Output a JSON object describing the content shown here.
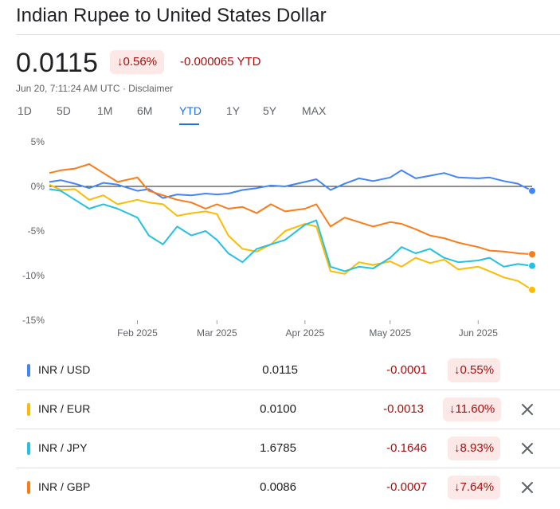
{
  "header": {
    "title": "Indian Rupee to United States Dollar",
    "price": "0.0115",
    "pct_change": "↓0.56%",
    "ytd_change": "-0.000065 YTD",
    "timestamp": "Jun 20, 7:11:24 AM UTC · Disclaimer"
  },
  "tabs": [
    "1D",
    "5D",
    "1M",
    "6M",
    "YTD",
    "1Y",
    "5Y",
    "MAX"
  ],
  "active_tab": "YTD",
  "colors": {
    "usd": "#4285f4",
    "eur": "#fbbc04",
    "jpy": "#24c1e0",
    "gbp": "#fa7b17",
    "negative": "#a50e0e",
    "negative_bg": "#fce8e6",
    "accent": "#1a73e8"
  },
  "chart_data": {
    "type": "line",
    "y_unit": "%",
    "ylim": [
      -15,
      5
    ],
    "yticks": [
      "5%",
      "0%",
      "-5%",
      "-10%",
      "-15%"
    ],
    "xticks": [
      "Feb 2025",
      "Mar 2025",
      "Apr 2025",
      "May 2025",
      "Jun 2025"
    ],
    "xlim": [
      "2025-01-01",
      "2025-06-20"
    ],
    "baseline": 0,
    "series": [
      {
        "name": "INR / USD",
        "color": "#4285f4",
        "x": [
          "2025-01-01",
          "2025-01-05",
          "2025-01-10",
          "2025-01-15",
          "2025-01-20",
          "2025-01-25",
          "2025-02-01",
          "2025-02-05",
          "2025-02-10",
          "2025-02-15",
          "2025-02-20",
          "2025-02-25",
          "2025-03-01",
          "2025-03-05",
          "2025-03-10",
          "2025-03-15",
          "2025-03-20",
          "2025-03-25",
          "2025-04-01",
          "2025-04-05",
          "2025-04-10",
          "2025-04-15",
          "2025-04-20",
          "2025-04-25",
          "2025-05-01",
          "2025-05-05",
          "2025-05-10",
          "2025-05-15",
          "2025-05-20",
          "2025-05-25",
          "2025-06-01",
          "2025-06-05",
          "2025-06-10",
          "2025-06-15",
          "2025-06-20"
        ],
        "y": [
          0.5,
          0.7,
          0.3,
          -0.2,
          0.4,
          0.2,
          -0.5,
          -0.3,
          -1.3,
          -0.9,
          -1.0,
          -0.8,
          -0.9,
          -0.8,
          -0.4,
          -0.2,
          0.1,
          0.0,
          0.5,
          0.8,
          -0.4,
          0.3,
          0.9,
          0.6,
          1.0,
          1.8,
          0.9,
          1.2,
          1.5,
          1.0,
          0.9,
          1.0,
          0.6,
          0.3,
          -0.5
        ]
      },
      {
        "name": "INR / EUR",
        "color": "#fbbc04",
        "x": [
          "2025-01-01",
          "2025-01-05",
          "2025-01-10",
          "2025-01-15",
          "2025-01-20",
          "2025-01-25",
          "2025-02-01",
          "2025-02-05",
          "2025-02-10",
          "2025-02-15",
          "2025-02-20",
          "2025-02-25",
          "2025-03-01",
          "2025-03-05",
          "2025-03-10",
          "2025-03-15",
          "2025-03-20",
          "2025-03-25",
          "2025-04-01",
          "2025-04-05",
          "2025-04-10",
          "2025-04-15",
          "2025-04-20",
          "2025-04-25",
          "2025-05-01",
          "2025-05-05",
          "2025-05-10",
          "2025-05-15",
          "2025-05-20",
          "2025-05-25",
          "2025-06-01",
          "2025-06-05",
          "2025-06-10",
          "2025-06-15",
          "2025-06-20"
        ],
        "y": [
          0.2,
          -0.4,
          -0.3,
          -1.5,
          -1.0,
          -2.0,
          -1.5,
          -1.8,
          -2.0,
          -3.3,
          -3.0,
          -2.8,
          -3.1,
          -5.5,
          -7.0,
          -7.3,
          -6.5,
          -5.0,
          -4.2,
          -4.5,
          -9.5,
          -9.8,
          -8.5,
          -8.8,
          -8.4,
          -9.0,
          -8.0,
          -8.6,
          -8.2,
          -9.3,
          -9.0,
          -9.5,
          -10.2,
          -10.6,
          -11.6
        ]
      },
      {
        "name": "INR / JPY",
        "color": "#24c1e0",
        "x": [
          "2025-01-01",
          "2025-01-05",
          "2025-01-10",
          "2025-01-15",
          "2025-01-20",
          "2025-01-25",
          "2025-02-01",
          "2025-02-05",
          "2025-02-10",
          "2025-02-15",
          "2025-02-20",
          "2025-02-25",
          "2025-03-01",
          "2025-03-05",
          "2025-03-10",
          "2025-03-15",
          "2025-03-20",
          "2025-03-25",
          "2025-04-01",
          "2025-04-05",
          "2025-04-10",
          "2025-04-15",
          "2025-04-20",
          "2025-04-25",
          "2025-05-01",
          "2025-05-05",
          "2025-05-10",
          "2025-05-15",
          "2025-05-20",
          "2025-05-25",
          "2025-06-01",
          "2025-06-05",
          "2025-06-10",
          "2025-06-15",
          "2025-06-20"
        ],
        "y": [
          -0.3,
          -0.5,
          -1.5,
          -2.5,
          -2.0,
          -2.5,
          -3.5,
          -5.5,
          -6.5,
          -4.5,
          -5.5,
          -5.0,
          -6.0,
          -7.5,
          -8.5,
          -7.0,
          -6.5,
          -6.0,
          -4.3,
          -3.8,
          -9.0,
          -9.5,
          -9.0,
          -9.2,
          -8.0,
          -6.8,
          -7.5,
          -7.0,
          -8.0,
          -8.5,
          -8.3,
          -8.0,
          -9.0,
          -8.7,
          -8.9
        ]
      },
      {
        "name": "INR / GBP",
        "color": "#fa7b17",
        "x": [
          "2025-01-01",
          "2025-01-05",
          "2025-01-10",
          "2025-01-15",
          "2025-01-20",
          "2025-01-25",
          "2025-02-01",
          "2025-02-05",
          "2025-02-10",
          "2025-02-15",
          "2025-02-20",
          "2025-02-25",
          "2025-03-01",
          "2025-03-05",
          "2025-03-10",
          "2025-03-15",
          "2025-03-20",
          "2025-03-25",
          "2025-04-01",
          "2025-04-05",
          "2025-04-10",
          "2025-04-15",
          "2025-04-20",
          "2025-04-25",
          "2025-05-01",
          "2025-05-05",
          "2025-05-10",
          "2025-05-15",
          "2025-05-20",
          "2025-05-25",
          "2025-06-01",
          "2025-06-05",
          "2025-06-10",
          "2025-06-15",
          "2025-06-20"
        ],
        "y": [
          1.5,
          1.8,
          2.0,
          2.5,
          1.5,
          0.5,
          1.0,
          -0.5,
          -1.0,
          -1.5,
          -1.8,
          -2.5,
          -2.0,
          -2.5,
          -2.3,
          -3.0,
          -2.0,
          -2.8,
          -2.5,
          -2.0,
          -4.5,
          -3.5,
          -4.0,
          -4.5,
          -4.0,
          -4.2,
          -4.8,
          -5.5,
          -5.8,
          -6.3,
          -6.8,
          -7.2,
          -7.3,
          -7.5,
          -7.6
        ]
      }
    ]
  },
  "table": {
    "rows": [
      {
        "pair": "INR / USD",
        "rate": "0.0115",
        "abs": "-0.0001",
        "pct": "↓0.55%",
        "color": "#4285f4",
        "removable": false
      },
      {
        "pair": "INR / EUR",
        "rate": "0.0100",
        "abs": "-0.0013",
        "pct": "↓11.60%",
        "color": "#fbbc04",
        "removable": true
      },
      {
        "pair": "INR / JPY",
        "rate": "1.6785",
        "abs": "-0.1646",
        "pct": "↓8.93%",
        "color": "#24c1e0",
        "removable": true
      },
      {
        "pair": "INR / GBP",
        "rate": "0.0086",
        "abs": "-0.0007",
        "pct": "↓7.64%",
        "color": "#fa7b17",
        "removable": true
      }
    ]
  }
}
